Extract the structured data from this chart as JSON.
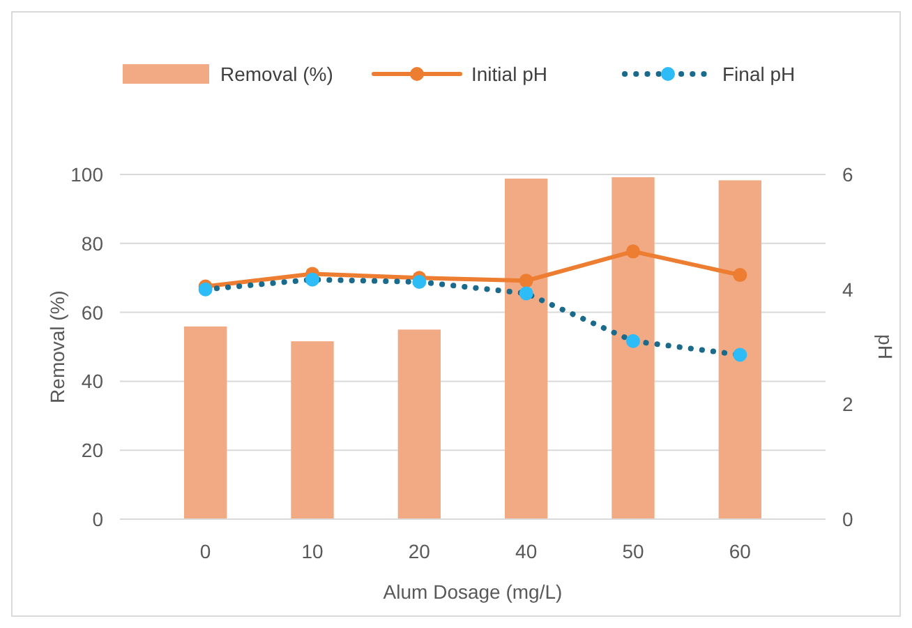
{
  "chart_data": {
    "type": "bar",
    "xlabel": "Alum Dosage (mg/L)",
    "ylabel": "Removal (%)",
    "y2label": "pH",
    "categories": [
      "0",
      "10",
      "20",
      "40",
      "50",
      "60"
    ],
    "series": [
      {
        "name": "Removal (%)",
        "color": "#f2aa84",
        "values": [
          55.9,
          51.6,
          55,
          98.8,
          99.2,
          98.3
        ]
      },
      {
        "name": "Initial pH",
        "type": "line",
        "axis": "y2",
        "color": "#ed7d31",
        "marker": "circle",
        "line_style": "solid",
        "values": [
          4.05,
          4.27,
          4.2,
          4.15,
          4.66,
          4.25
        ]
      },
      {
        "name": "Final pH",
        "type": "line",
        "axis": "y2",
        "color": "#1a6a8c",
        "marker": "circle",
        "line_style": "dotted",
        "values": [
          4.0,
          4.17,
          4.13,
          3.93,
          3.1,
          2.86
        ]
      }
    ],
    "ylim": [
      0,
      100
    ],
    "yticks": [
      0,
      20,
      40,
      60,
      80,
      100
    ],
    "y2lim": [
      0,
      6
    ],
    "y2ticks": [
      0,
      2,
      4,
      6
    ],
    "grid": "y",
    "legend": "top"
  }
}
